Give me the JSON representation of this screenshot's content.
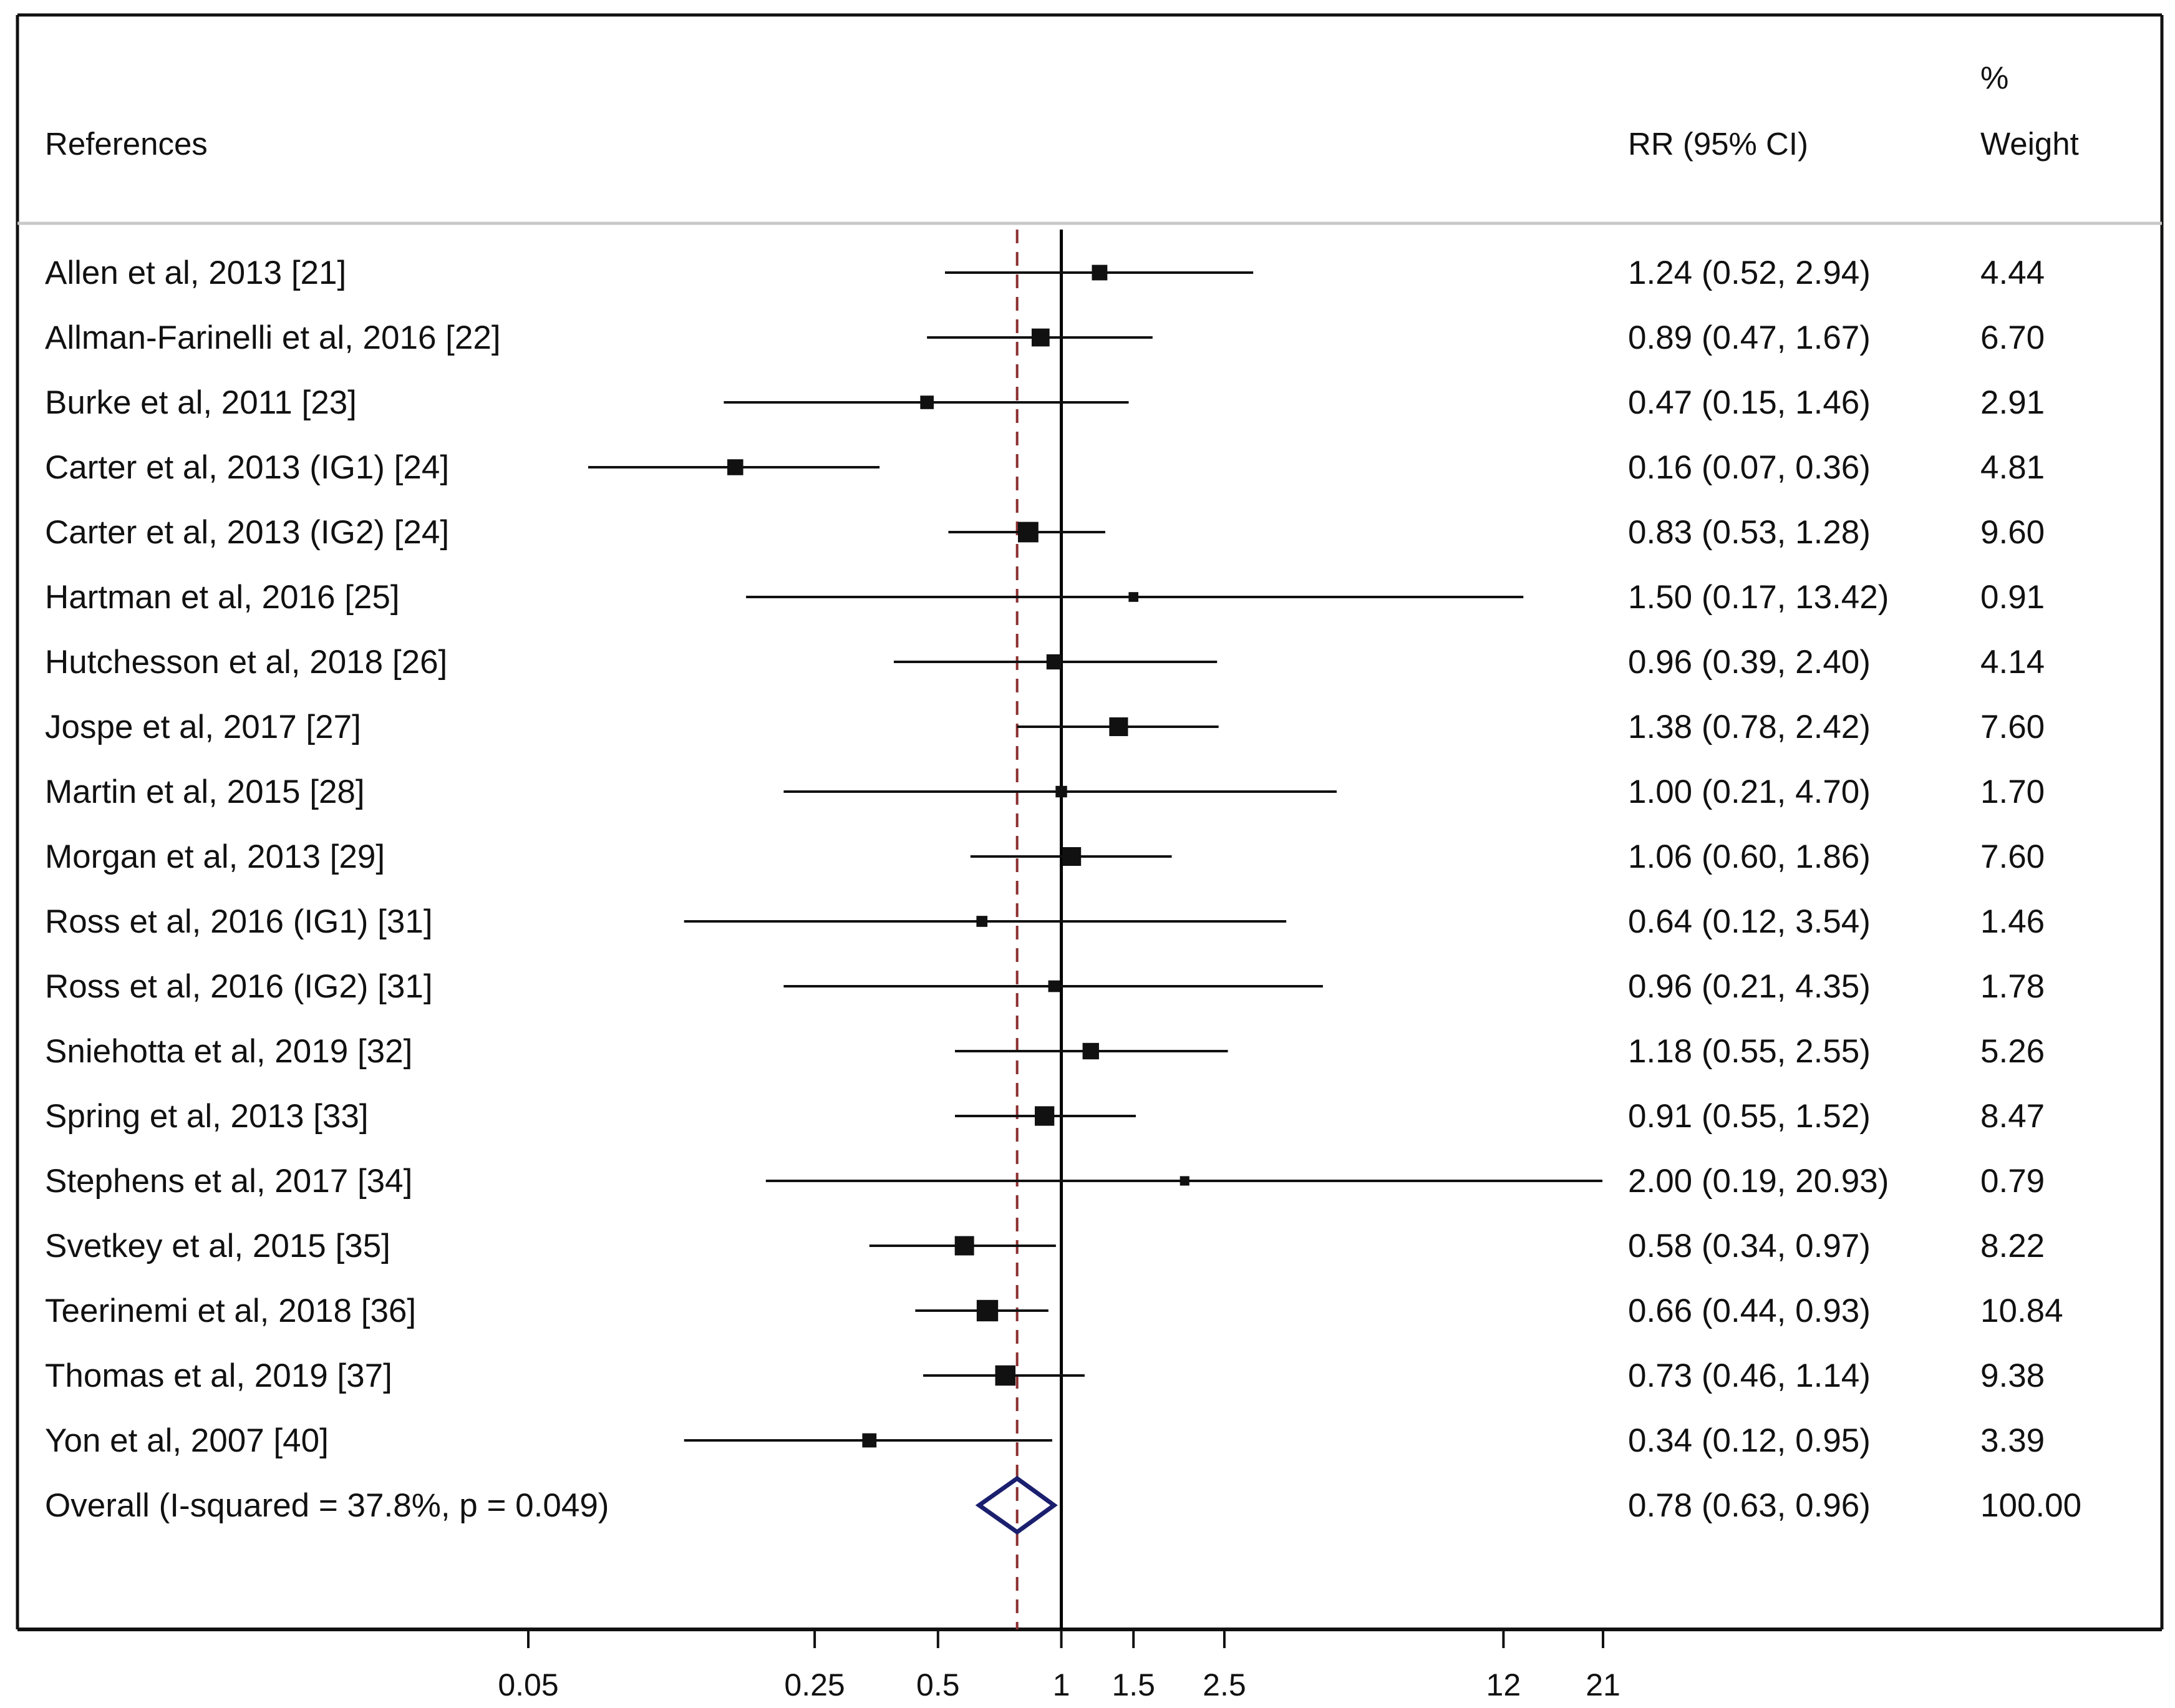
{
  "chart_data": {
    "type": "forest",
    "headers": {
      "studies": "References",
      "effect": "RR (95% CI)",
      "weight_line1": "%",
      "weight_line2": "Weight"
    },
    "x_scale": "log",
    "xlim": [
      0.05,
      21
    ],
    "null_value": 1,
    "x_ticks": [
      {
        "value": 0.05,
        "label": "0.05"
      },
      {
        "value": 0.25,
        "label": "0.25"
      },
      {
        "value": 0.5,
        "label": "0.5"
      },
      {
        "value": 1,
        "label": "1"
      },
      {
        "value": 1.5,
        "label": "1.5"
      },
      {
        "value": 2.5,
        "label": "2.5"
      },
      {
        "value": 12,
        "label": "12"
      },
      {
        "value": 21,
        "label": "21"
      }
    ],
    "studies": [
      {
        "label": "Allen et al, 2013 [21]",
        "rr": 1.24,
        "lo": 0.52,
        "hi": 2.94,
        "ci_text": "1.24 (0.52, 2.94)",
        "weight": 4.44,
        "weight_text": "4.44"
      },
      {
        "label": "Allman-Farinelli et al, 2016 [22]",
        "rr": 0.89,
        "lo": 0.47,
        "hi": 1.67,
        "ci_text": "0.89 (0.47, 1.67)",
        "weight": 6.7,
        "weight_text": "6.70"
      },
      {
        "label": "Burke et al, 2011 [23]",
        "rr": 0.47,
        "lo": 0.15,
        "hi": 1.46,
        "ci_text": "0.47 (0.15, 1.46)",
        "weight": 2.91,
        "weight_text": "2.91"
      },
      {
        "label": "Carter et al, 2013 (IG1) [24]",
        "rr": 0.16,
        "lo": 0.07,
        "hi": 0.36,
        "ci_text": "0.16 (0.07, 0.36)",
        "weight": 4.81,
        "weight_text": "4.81"
      },
      {
        "label": "Carter et al, 2013 (IG2) [24]",
        "rr": 0.83,
        "lo": 0.53,
        "hi": 1.28,
        "ci_text": "0.83 (0.53, 1.28)",
        "weight": 9.6,
        "weight_text": "9.60"
      },
      {
        "label": "Hartman et al, 2016 [25]",
        "rr": 1.5,
        "lo": 0.17,
        "hi": 13.42,
        "ci_text": "1.50 (0.17, 13.42)",
        "weight": 0.91,
        "weight_text": "0.91"
      },
      {
        "label": "Hutchesson et al, 2018 [26]",
        "rr": 0.96,
        "lo": 0.39,
        "hi": 2.4,
        "ci_text": "0.96 (0.39, 2.40)",
        "weight": 4.14,
        "weight_text": "4.14"
      },
      {
        "label": "Jospe et al, 2017 [27]",
        "rr": 1.38,
        "lo": 0.78,
        "hi": 2.42,
        "ci_text": "1.38 (0.78, 2.42)",
        "weight": 7.6,
        "weight_text": "7.60"
      },
      {
        "label": "Martin et al, 2015 [28]",
        "rr": 1.0,
        "lo": 0.21,
        "hi": 4.7,
        "ci_text": "1.00 (0.21, 4.70)",
        "weight": 1.7,
        "weight_text": "1.70"
      },
      {
        "label": "Morgan et al, 2013 [29]",
        "rr": 1.06,
        "lo": 0.6,
        "hi": 1.86,
        "ci_text": "1.06 (0.60, 1.86)",
        "weight": 7.6,
        "weight_text": "7.60"
      },
      {
        "label": "Ross et al, 2016 (IG1) [31]",
        "rr": 0.64,
        "lo": 0.12,
        "hi": 3.54,
        "ci_text": "0.64 (0.12, 3.54)",
        "weight": 1.46,
        "weight_text": "1.46"
      },
      {
        "label": "Ross et al, 2016 (IG2) [31]",
        "rr": 0.96,
        "lo": 0.21,
        "hi": 4.35,
        "ci_text": "0.96 (0.21, 4.35)",
        "weight": 1.78,
        "weight_text": "1.78"
      },
      {
        "label": "Sniehotta et al, 2019 [32]",
        "rr": 1.18,
        "lo": 0.55,
        "hi": 2.55,
        "ci_text": "1.18 (0.55, 2.55)",
        "weight": 5.26,
        "weight_text": "5.26"
      },
      {
        "label": "Spring et al, 2013 [33]",
        "rr": 0.91,
        "lo": 0.55,
        "hi": 1.52,
        "ci_text": "0.91 (0.55, 1.52)",
        "weight": 8.47,
        "weight_text": "8.47"
      },
      {
        "label": "Stephens et al, 2017 [34]",
        "rr": 2.0,
        "lo": 0.19,
        "hi": 20.93,
        "ci_text": "2.00 (0.19, 20.93)",
        "weight": 0.79,
        "weight_text": "0.79"
      },
      {
        "label": "Svetkey et al, 2015 [35]",
        "rr": 0.58,
        "lo": 0.34,
        "hi": 0.97,
        "ci_text": "0.58 (0.34, 0.97)",
        "weight": 8.22,
        "weight_text": "8.22"
      },
      {
        "label": "Teerinemi et al, 2018 [36]",
        "rr": 0.66,
        "lo": 0.44,
        "hi": 0.93,
        "ci_text": "0.66 (0.44, 0.93)",
        "weight": 10.84,
        "weight_text": "10.84"
      },
      {
        "label": "Thomas et al, 2019 [37]",
        "rr": 0.73,
        "lo": 0.46,
        "hi": 1.14,
        "ci_text": "0.73 (0.46, 1.14)",
        "weight": 9.38,
        "weight_text": "9.38"
      },
      {
        "label": "Yon et al, 2007 [40]",
        "rr": 0.34,
        "lo": 0.12,
        "hi": 0.95,
        "ci_text": "0.34 (0.12, 0.95)",
        "weight": 3.39,
        "weight_text": "3.39"
      }
    ],
    "overall": {
      "label": "Overall  (I-squared = 37.8%, p = 0.049)",
      "rr": 0.78,
      "lo": 0.63,
      "hi": 0.96,
      "ci_text": "0.78 (0.63, 0.96)",
      "weight_text": "100.00"
    },
    "colors": {
      "diamond": "#1a1f6e",
      "overall_line": "#8b2e2e",
      "null_line": "#000000",
      "header_rule": "#c8c8c8"
    }
  }
}
